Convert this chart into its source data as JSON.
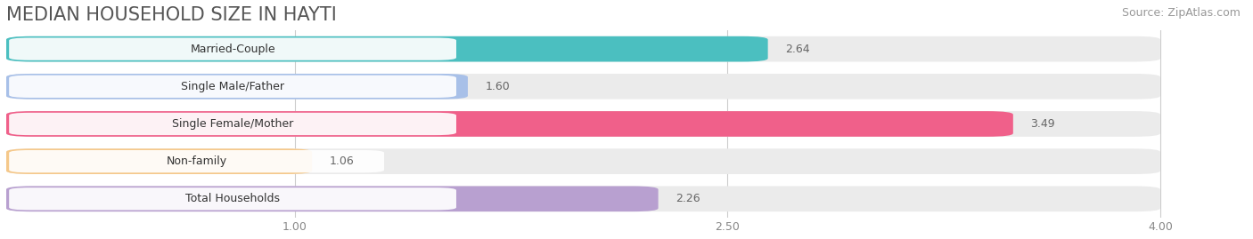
{
  "title": "MEDIAN HOUSEHOLD SIZE IN HAYTI",
  "source": "Source: ZipAtlas.com",
  "categories": [
    "Married-Couple",
    "Single Male/Father",
    "Single Female/Mother",
    "Non-family",
    "Total Households"
  ],
  "values": [
    2.64,
    1.6,
    3.49,
    1.06,
    2.26
  ],
  "bar_colors": [
    "#4bbfc0",
    "#a8c0e8",
    "#f0608a",
    "#f5c88a",
    "#b8a0d0"
  ],
  "background_color": "#ffffff",
  "bar_bg_color": "#ebebeb",
  "xlim_data": [
    0,
    4.3
  ],
  "xlim_display": [
    0,
    4.3
  ],
  "xticks": [
    1.0,
    2.5,
    4.0
  ],
  "title_fontsize": 15,
  "source_fontsize": 9,
  "label_fontsize": 9,
  "value_fontsize": 9,
  "bar_height": 0.68,
  "value_colors": [
    "#555555",
    "#555555",
    "#555555",
    "#555555",
    "#555555"
  ]
}
